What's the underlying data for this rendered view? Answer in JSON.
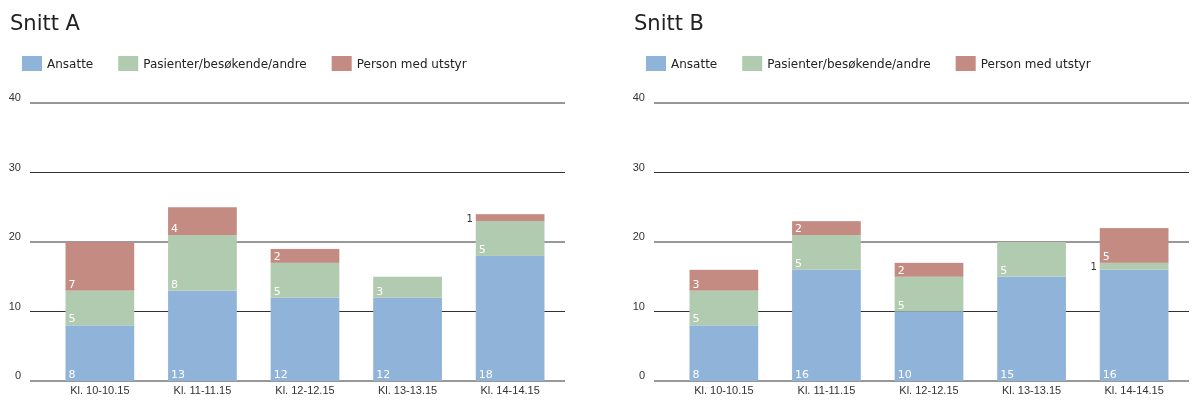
{
  "chart_data": [
    {
      "type": "bar",
      "title": "Snitt A",
      "stacked": true,
      "data_labels": true,
      "grid": "y",
      "legend": "top left",
      "categories": [
        "Kl. 10-10.15",
        "Kl. 11-11.15",
        "Kl. 12-12.15",
        "Kl. 13-13.15",
        "Kl. 14-14.15"
      ],
      "ylim": [
        0,
        40
      ],
      "yticks": [
        0,
        10,
        20,
        30,
        40
      ],
      "series": [
        {
          "name": "Ansatte",
          "color": "#8fb3d9",
          "values": [
            8,
            13,
            12,
            12,
            18
          ]
        },
        {
          "name": "Pasienter/besøkende/andre",
          "color": "#b0cbb0",
          "values": [
            5,
            8,
            5,
            3,
            5
          ]
        },
        {
          "name": "Person med utstyr",
          "color": "#c48b82",
          "values": [
            7,
            4,
            2,
            null,
            1
          ]
        }
      ]
    },
    {
      "type": "bar",
      "title": "Snitt B",
      "stacked": true,
      "data_labels": true,
      "grid": "y",
      "legend": "top left",
      "categories": [
        "Kl. 10-10.15",
        "Kl. 11-11.15",
        "Kl. 12-12.15",
        "Kl. 13-13.15",
        "Kl. 14-14.15"
      ],
      "ylim": [
        0,
        40
      ],
      "yticks": [
        0,
        10,
        20,
        30,
        40
      ],
      "series": [
        {
          "name": "Ansatte",
          "color": "#8fb3d9",
          "values": [
            8,
            16,
            10,
            15,
            16
          ]
        },
        {
          "name": "Pasienter/besøkende/andre",
          "color": "#b0cbb0",
          "values": [
            5,
            5,
            5,
            5,
            1
          ]
        },
        {
          "name": "Person med utstyr",
          "color": "#c48b82",
          "values": [
            3,
            2,
            2,
            null,
            5
          ]
        }
      ]
    }
  ]
}
